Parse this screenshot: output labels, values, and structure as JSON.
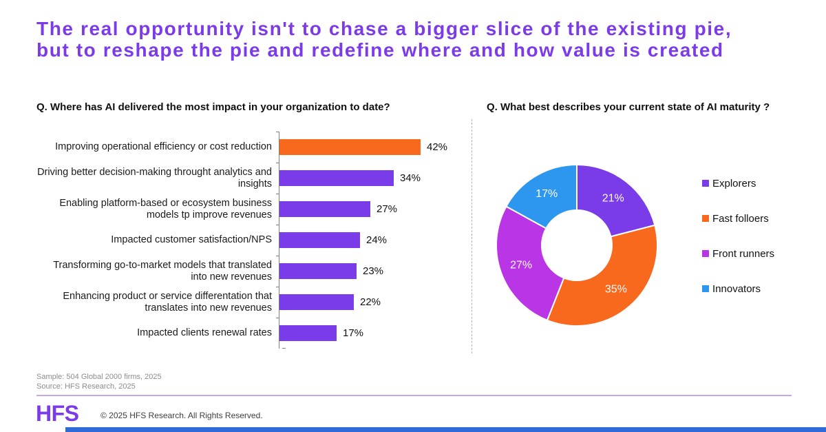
{
  "header": {
    "title": "The real opportunity isn't to chase a bigger slice of the existing pie, but to reshape the pie and redefine where and how value is created"
  },
  "colors": {
    "accent_purple": "#7C3BE9",
    "bar_purple": "#7A3BE8",
    "highlight_orange": "#F8681D",
    "magenta": "#B935E6",
    "azure": "#2D96EE",
    "footer_line_purple": "#C2A8F2",
    "bottom_bar_blue": "#2E6BD6",
    "axis_grey": "#7f7f7f"
  },
  "chart_data": [
    {
      "type": "bar",
      "orientation": "horizontal",
      "title": "Q. Where has AI delivered the most impact in your organization to date?",
      "categories": [
        "Improving operational efficiency or cost reduction",
        "Driving better decision-making throught analytics and insights",
        "Enabling platform-based or ecosystem business models tp improve revenues",
        "Impacted customer satisfaction/NPS",
        "Transforming go-to-market models that translated into new revenues",
        "Enhancing product or service differentation that translates into new revenues",
        "Impacted clients renewal rates"
      ],
      "values": [
        42,
        34,
        27,
        24,
        23,
        22,
        17
      ],
      "value_labels": [
        "42%",
        "34%",
        "27%",
        "24%",
        "23%",
        "22%",
        "17%"
      ],
      "bar_colors": [
        "#F8681D",
        "#7A3BE8",
        "#7A3BE8",
        "#7A3BE8",
        "#7A3BE8",
        "#7A3BE8",
        "#7A3BE8"
      ],
      "unit": "%",
      "xlim": [
        0,
        45
      ],
      "grid": false,
      "legend": false
    },
    {
      "type": "pie",
      "subtype": "donut",
      "title": "Q. What best describes your current state of AI maturity ?",
      "labels": [
        "Explorers",
        "Fast folloers",
        "Front runners",
        "Innovators"
      ],
      "values": [
        21,
        35,
        27,
        17
      ],
      "slice_labels": [
        "21%",
        "35%",
        "27%",
        "17%"
      ],
      "colors": [
        "#7A3BE8",
        "#F8681D",
        "#B935E6",
        "#2D96EE"
      ],
      "start_angle_deg": 0,
      "direction": "clockwise",
      "legend_position": "right"
    }
  ],
  "footer": {
    "sample": "Sample: 504 Global 2000 firms, 2025",
    "source": "Source: HFS Research, 2025",
    "logo_text": "HFS",
    "copyright": "© 2025 HFS Research. All Rights Reserved."
  }
}
